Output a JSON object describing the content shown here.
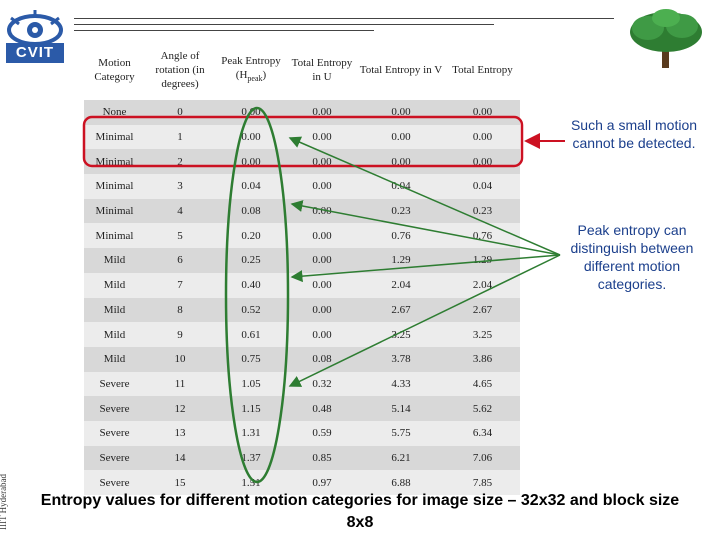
{
  "logo": {
    "text": "CVIT"
  },
  "side_label": "IIIT Hyderabad",
  "table": {
    "headers": [
      "Motion Category",
      "Angle of rotation (in degrees)",
      "Peak Entropy (H",
      "Total Entropy in U",
      "Total Entropy in V",
      "Total Entropy"
    ],
    "peak_sub": "peak",
    "peak_close": ")",
    "rows": [
      [
        "None",
        "0",
        "0.00",
        "0.00",
        "0.00",
        "0.00"
      ],
      [
        "Minimal",
        "1",
        "0.00",
        "0.00",
        "0.00",
        "0.00"
      ],
      [
        "Minimal",
        "2",
        "0.00",
        "0.00",
        "0.00",
        "0.00"
      ],
      [
        "Minimal",
        "3",
        "0.04",
        "0.00",
        "0.04",
        "0.04"
      ],
      [
        "Minimal",
        "4",
        "0.08",
        "0.00",
        "0.23",
        "0.23"
      ],
      [
        "Minimal",
        "5",
        "0.20",
        "0.00",
        "0.76",
        "0.76"
      ],
      [
        "Mild",
        "6",
        "0.25",
        "0.00",
        "1.29",
        "1.29"
      ],
      [
        "Mild",
        "7",
        "0.40",
        "0.00",
        "2.04",
        "2.04"
      ],
      [
        "Mild",
        "8",
        "0.52",
        "0.00",
        "2.67",
        "2.67"
      ],
      [
        "Mild",
        "9",
        "0.61",
        "0.00",
        "3.25",
        "3.25"
      ],
      [
        "Mild",
        "10",
        "0.75",
        "0.08",
        "3.78",
        "3.86"
      ],
      [
        "Severe",
        "11",
        "1.05",
        "0.32",
        "4.33",
        "4.65"
      ],
      [
        "Severe",
        "12",
        "1.15",
        "0.48",
        "5.14",
        "5.62"
      ],
      [
        "Severe",
        "13",
        "1.31",
        "0.59",
        "5.75",
        "6.34"
      ],
      [
        "Severe",
        "14",
        "1.37",
        "0.85",
        "6.21",
        "7.06"
      ],
      [
        "Severe",
        "15",
        "1.51",
        "0.97",
        "6.88",
        "7.85"
      ]
    ]
  },
  "notes": {
    "small_motion": "Such a small motion cannot be detected.",
    "peak_entropy": "Peak entropy can distinguish between different motion categories."
  },
  "caption": "Entropy values for different motion categories for image size – 32x32 and block size 8x8",
  "colors": {
    "annotation": "#cc1122",
    "note_text": "#1b3f8c",
    "tree": "#2e7d32",
    "logo_blue": "#2b5aa8"
  }
}
